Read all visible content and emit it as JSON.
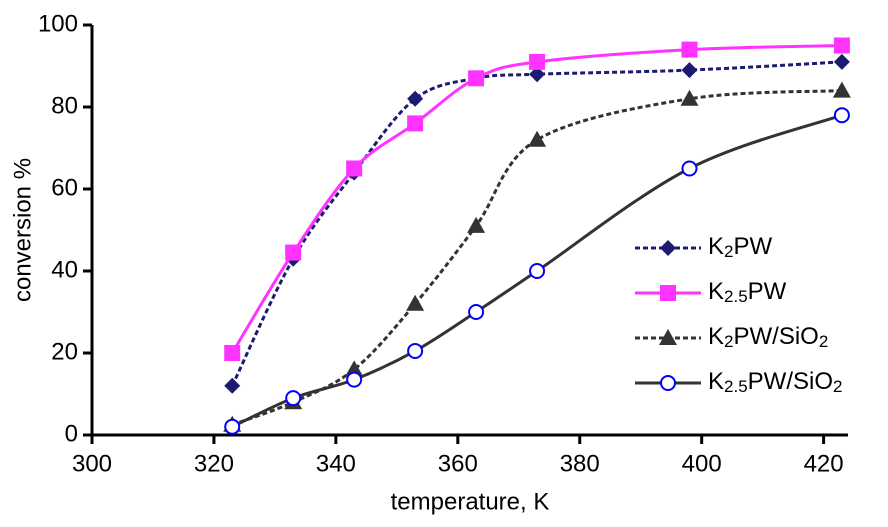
{
  "chart_data": {
    "type": "line",
    "x_label": "temperature, K",
    "y_label": "conversion %",
    "x": [
      323,
      333,
      343,
      353,
      363,
      373,
      398,
      423
    ],
    "series": [
      {
        "name": "K2PW",
        "color": "#1b1b72",
        "marker": "diamond",
        "dashed": true,
        "values": [
          12,
          43,
          64,
          82,
          87,
          88,
          89,
          91
        ]
      },
      {
        "name": "K2.5PW",
        "color": "#ff33ff",
        "marker": "square",
        "dashed": false,
        "values": [
          20,
          44.5,
          65,
          76,
          87,
          91,
          94,
          95
        ]
      },
      {
        "name": "K2PW/SiO2",
        "color": "#333333",
        "marker": "triangle",
        "dashed": true,
        "values": [
          2.5,
          8,
          16,
          32,
          51,
          72,
          82,
          84
        ]
      },
      {
        "name": "K2.5PW/SiO2",
        "color": "#333333",
        "marker": "open-circle",
        "marker_color": "#0000ff",
        "dashed": false,
        "values": [
          2,
          9,
          13.5,
          20.5,
          30,
          40,
          65,
          78
        ]
      }
    ],
    "xlim": [
      300,
      424
    ],
    "xticks": [
      300,
      320,
      340,
      360,
      380,
      400,
      420
    ],
    "ylim": [
      0,
      100
    ],
    "yticks": [
      0,
      20,
      40,
      60,
      80,
      100
    ],
    "legend": "lower-right"
  }
}
